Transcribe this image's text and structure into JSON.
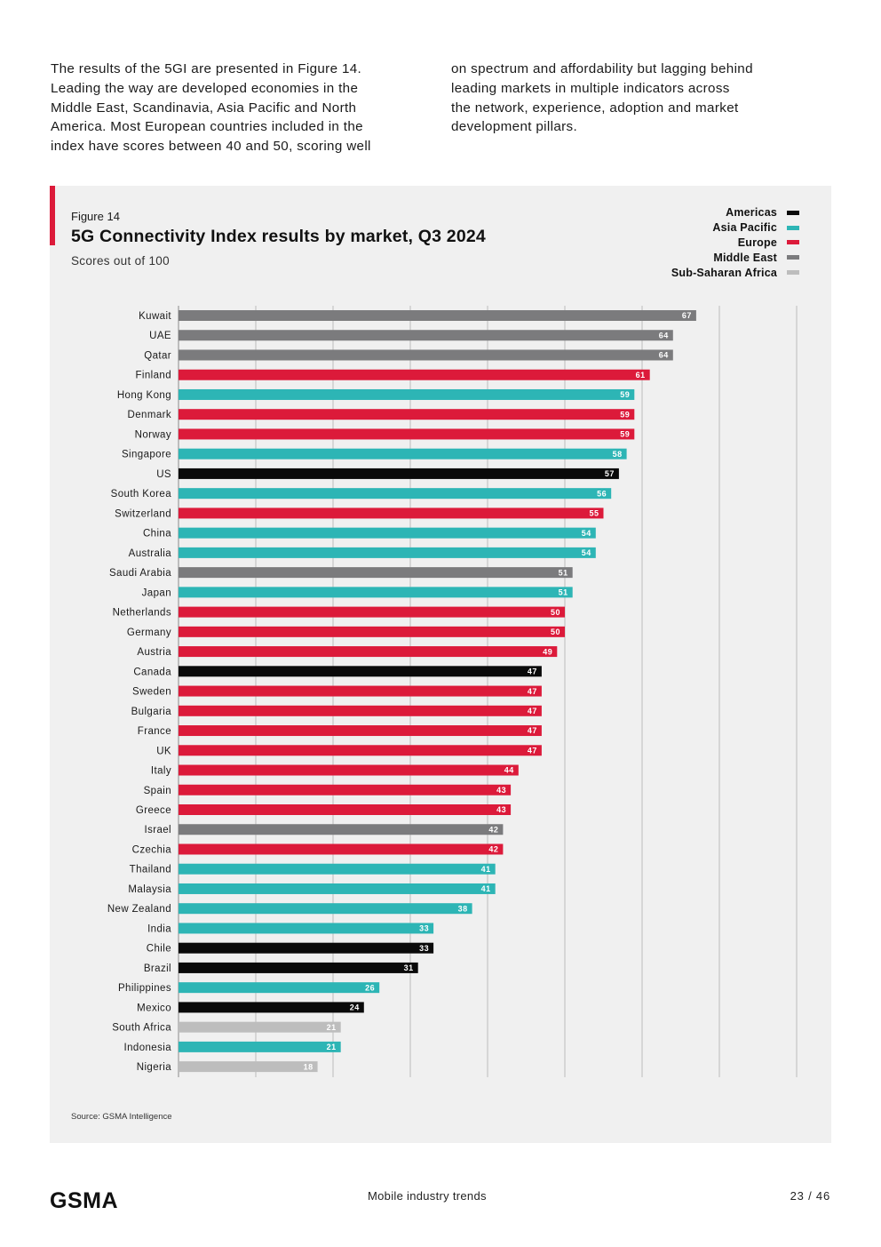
{
  "intro": {
    "left_lines": [
      "The results of the 5GI are presented in Figure 14.",
      "Leading the way are developed economies in the",
      "Middle East, Scandinavia, Asia Pacific and North",
      "America. Most European countries included in the",
      "index have scores between 40 and 50, scoring well"
    ],
    "right_lines": [
      "on spectrum and affordability but lagging behind",
      "leading markets in multiple indicators across",
      "the network, experience, adoption and market",
      "development pillars."
    ]
  },
  "figure": {
    "label": "Figure 14",
    "source": "Source: GSMA Intelligence"
  },
  "legend": [
    {
      "name": "Americas",
      "color": "#0a0a0a"
    },
    {
      "name": "Asia Pacific",
      "color": "#2db5b5"
    },
    {
      "name": "Europe",
      "color": "#dc1a3a"
    },
    {
      "name": "Middle East",
      "color": "#7b7b7d"
    },
    {
      "name": "Sub-Saharan Africa",
      "color": "#bdbdbd"
    }
  ],
  "chart_data": {
    "type": "bar",
    "orientation": "horizontal",
    "title": "5G Connectivity Index results by market, Q3 2024",
    "subtitle": "Scores out of 100",
    "xlim": [
      0,
      80
    ],
    "grid": true,
    "legend_position": "top-right",
    "categories": [
      "Kuwait",
      "UAE",
      "Qatar",
      "Finland",
      "Hong Kong",
      "Denmark",
      "Norway",
      "Singapore",
      "US",
      "South Korea",
      "Switzerland",
      "China",
      "Australia",
      "Saudi Arabia",
      "Japan",
      "Netherlands",
      "Germany",
      "Austria",
      "Canada",
      "Sweden",
      "Bulgaria",
      "France",
      "UK",
      "Italy",
      "Spain",
      "Greece",
      "Israel",
      "Czechia",
      "Thailand",
      "Malaysia",
      "New Zealand",
      "India",
      "Chile",
      "Brazil",
      "Philippines",
      "Mexico",
      "South Africa",
      "Indonesia",
      "Nigeria"
    ],
    "values": [
      67,
      64,
      64,
      61,
      59,
      59,
      59,
      58,
      57,
      56,
      55,
      54,
      54,
      51,
      51,
      50,
      50,
      49,
      47,
      47,
      47,
      47,
      47,
      44,
      43,
      43,
      42,
      42,
      41,
      41,
      38,
      33,
      33,
      31,
      26,
      24,
      21,
      21,
      18
    ],
    "regions": [
      "Middle East",
      "Middle East",
      "Middle East",
      "Europe",
      "Asia Pacific",
      "Europe",
      "Europe",
      "Asia Pacific",
      "Americas",
      "Asia Pacific",
      "Europe",
      "Asia Pacific",
      "Asia Pacific",
      "Middle East",
      "Asia Pacific",
      "Europe",
      "Europe",
      "Europe",
      "Americas",
      "Europe",
      "Europe",
      "Europe",
      "Europe",
      "Europe",
      "Europe",
      "Europe",
      "Middle East",
      "Europe",
      "Asia Pacific",
      "Asia Pacific",
      "Asia Pacific",
      "Asia Pacific",
      "Americas",
      "Americas",
      "Asia Pacific",
      "Americas",
      "Sub-Saharan Africa",
      "Asia Pacific",
      "Sub-Saharan Africa"
    ]
  },
  "footer": {
    "logo_text": "GSMA",
    "center": "Mobile industry trends",
    "page": "23 / 46"
  }
}
